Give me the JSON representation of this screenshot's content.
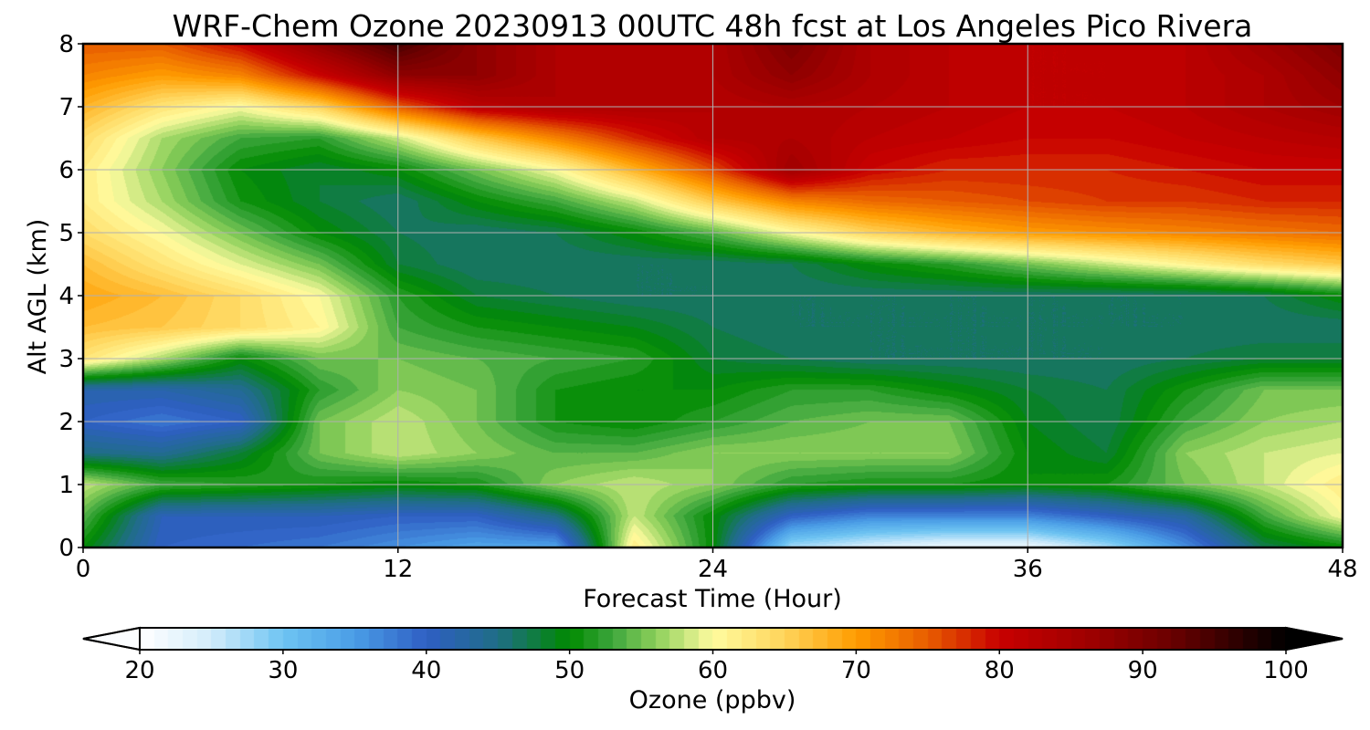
{
  "chart_data": {
    "type": "heatmap",
    "title": "WRF-Chem Ozone  20230913 00UTC 48h fcst at Los Angeles Pico Rivera",
    "xlabel": "Forecast Time (Hour)",
    "ylabel": "Alt AGL (km)",
    "xlim": [
      0,
      48
    ],
    "ylim": [
      0,
      8
    ],
    "xticks": [
      0,
      12,
      24,
      36,
      48
    ],
    "yticks": [
      0,
      1,
      2,
      3,
      4,
      5,
      6,
      7,
      8
    ],
    "grid": true,
    "colorbar": {
      "label": "Ozone  (ppbv)",
      "range": [
        20,
        100
      ],
      "ticks": [
        20,
        30,
        40,
        50,
        60,
        70,
        80,
        90,
        100
      ],
      "extend": "both",
      "orientation": "horizontal",
      "colors": [
        {
          "value": 20,
          "color": "#ffffff"
        },
        {
          "value": 25,
          "color": "#d2ecfb"
        },
        {
          "value": 30,
          "color": "#6ec4f2"
        },
        {
          "value": 35,
          "color": "#4a9de6"
        },
        {
          "value": 40,
          "color": "#2f5fc4"
        },
        {
          "value": 45,
          "color": "#1f6d86"
        },
        {
          "value": 50,
          "color": "#008a00"
        },
        {
          "value": 53,
          "color": "#3da63d"
        },
        {
          "value": 56,
          "color": "#8ccf5a"
        },
        {
          "value": 60,
          "color": "#fffca0"
        },
        {
          "value": 65,
          "color": "#ffd45a"
        },
        {
          "value": 70,
          "color": "#ff9c00"
        },
        {
          "value": 75,
          "color": "#e85d00"
        },
        {
          "value": 80,
          "color": "#c80000"
        },
        {
          "value": 86,
          "color": "#a00000"
        },
        {
          "value": 92,
          "color": "#6b0000"
        },
        {
          "value": 100,
          "color": "#000000"
        }
      ]
    },
    "x": [
      0,
      3,
      6,
      9,
      12,
      15,
      18,
      21,
      24,
      27,
      30,
      33,
      36,
      39,
      42,
      45,
      48
    ],
    "y": [
      0,
      0.5,
      1,
      1.5,
      2,
      2.5,
      3,
      3.5,
      4,
      4.5,
      5,
      5.5,
      6,
      6.5,
      7,
      7.5,
      8
    ],
    "z": [
      [
        50,
        40,
        39,
        38,
        36,
        34,
        34,
        62,
        50,
        27,
        24,
        22,
        22,
        27,
        36,
        47,
        50
      ],
      [
        54,
        41,
        41,
        41,
        40,
        40,
        45,
        58,
        50,
        40,
        37,
        37,
        37,
        40,
        43,
        53,
        60
      ],
      [
        58,
        53,
        52,
        51,
        50,
        51,
        56,
        58,
        56,
        52,
        51,
        51,
        50,
        51,
        55,
        58,
        62
      ],
      [
        45,
        44,
        48,
        55,
        58,
        56,
        54,
        54,
        56,
        56,
        56,
        56,
        50,
        48,
        56,
        58,
        59
      ],
      [
        40,
        38,
        40,
        55,
        58,
        55,
        51,
        50,
        52,
        54,
        55,
        55,
        49,
        47,
        53,
        56,
        57
      ],
      [
        42,
        42,
        44,
        52,
        56,
        55,
        51,
        50,
        50,
        52,
        52,
        50,
        48,
        47,
        51,
        55,
        55
      ],
      [
        63,
        57,
        50,
        55,
        55,
        54,
        53,
        52,
        48,
        47,
        46,
        46,
        46,
        46,
        47,
        48,
        48
      ],
      [
        67,
        66,
        64,
        61,
        53,
        51,
        50,
        49,
        47,
        46,
        46,
        46,
        46,
        46,
        46,
        46,
        46
      ],
      [
        69,
        67,
        64,
        60,
        52,
        48,
        47,
        46,
        46,
        46,
        46,
        46,
        46,
        46,
        46,
        47,
        50
      ],
      [
        67,
        63,
        59,
        55,
        48,
        46,
        46,
        46,
        46,
        47,
        50,
        52,
        55,
        58,
        61,
        64,
        66
      ],
      [
        64,
        60,
        55,
        50,
        47,
        46,
        47,
        50,
        54,
        60,
        65,
        68,
        70,
        71,
        72,
        73,
        74
      ],
      [
        62,
        57,
        51,
        48,
        46,
        50,
        53,
        58,
        66,
        72,
        74,
        75,
        76,
        77,
        77,
        78,
        78
      ],
      [
        62,
        56,
        50,
        48,
        50,
        55,
        60,
        68,
        76,
        86,
        80,
        78,
        78,
        78,
        79,
        80,
        80
      ],
      [
        64,
        57,
        53,
        52,
        58,
        66,
        72,
        78,
        83,
        84,
        82,
        81,
        80,
        80,
        81,
        82,
        83
      ],
      [
        68,
        63,
        60,
        65,
        75,
        82,
        84,
        84,
        83,
        84,
        83,
        82,
        81,
        81,
        82,
        84,
        86
      ],
      [
        72,
        70,
        72,
        80,
        88,
        88,
        84,
        83,
        84,
        88,
        84,
        82,
        81,
        81,
        82,
        84,
        88
      ],
      [
        75,
        75,
        80,
        88,
        95,
        88,
        84,
        83,
        84,
        90,
        84,
        82,
        81,
        81,
        82,
        86,
        90
      ]
    ]
  }
}
